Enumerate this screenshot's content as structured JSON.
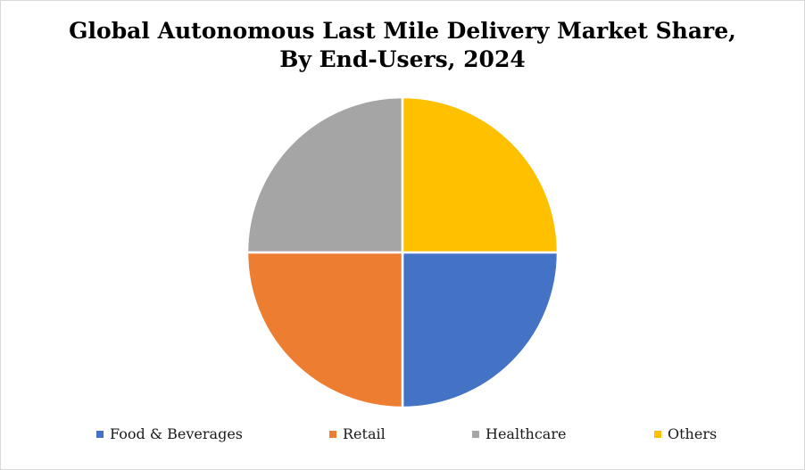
{
  "chart_data": {
    "type": "pie",
    "title_lines": [
      "Global Autonomous Last Mile Delivery Market Share,",
      "By End-Users, 2024"
    ],
    "categories": [
      "Food & Beverages",
      "Retail",
      "Healthcare",
      "Others"
    ],
    "values": [
      25,
      25,
      25,
      25
    ],
    "colors": [
      "#4472C4",
      "#ED7D31",
      "#A5A5A5",
      "#FFC000"
    ],
    "start_angle_deg": 0,
    "direction": "clockwise",
    "legend_position": "bottom"
  }
}
